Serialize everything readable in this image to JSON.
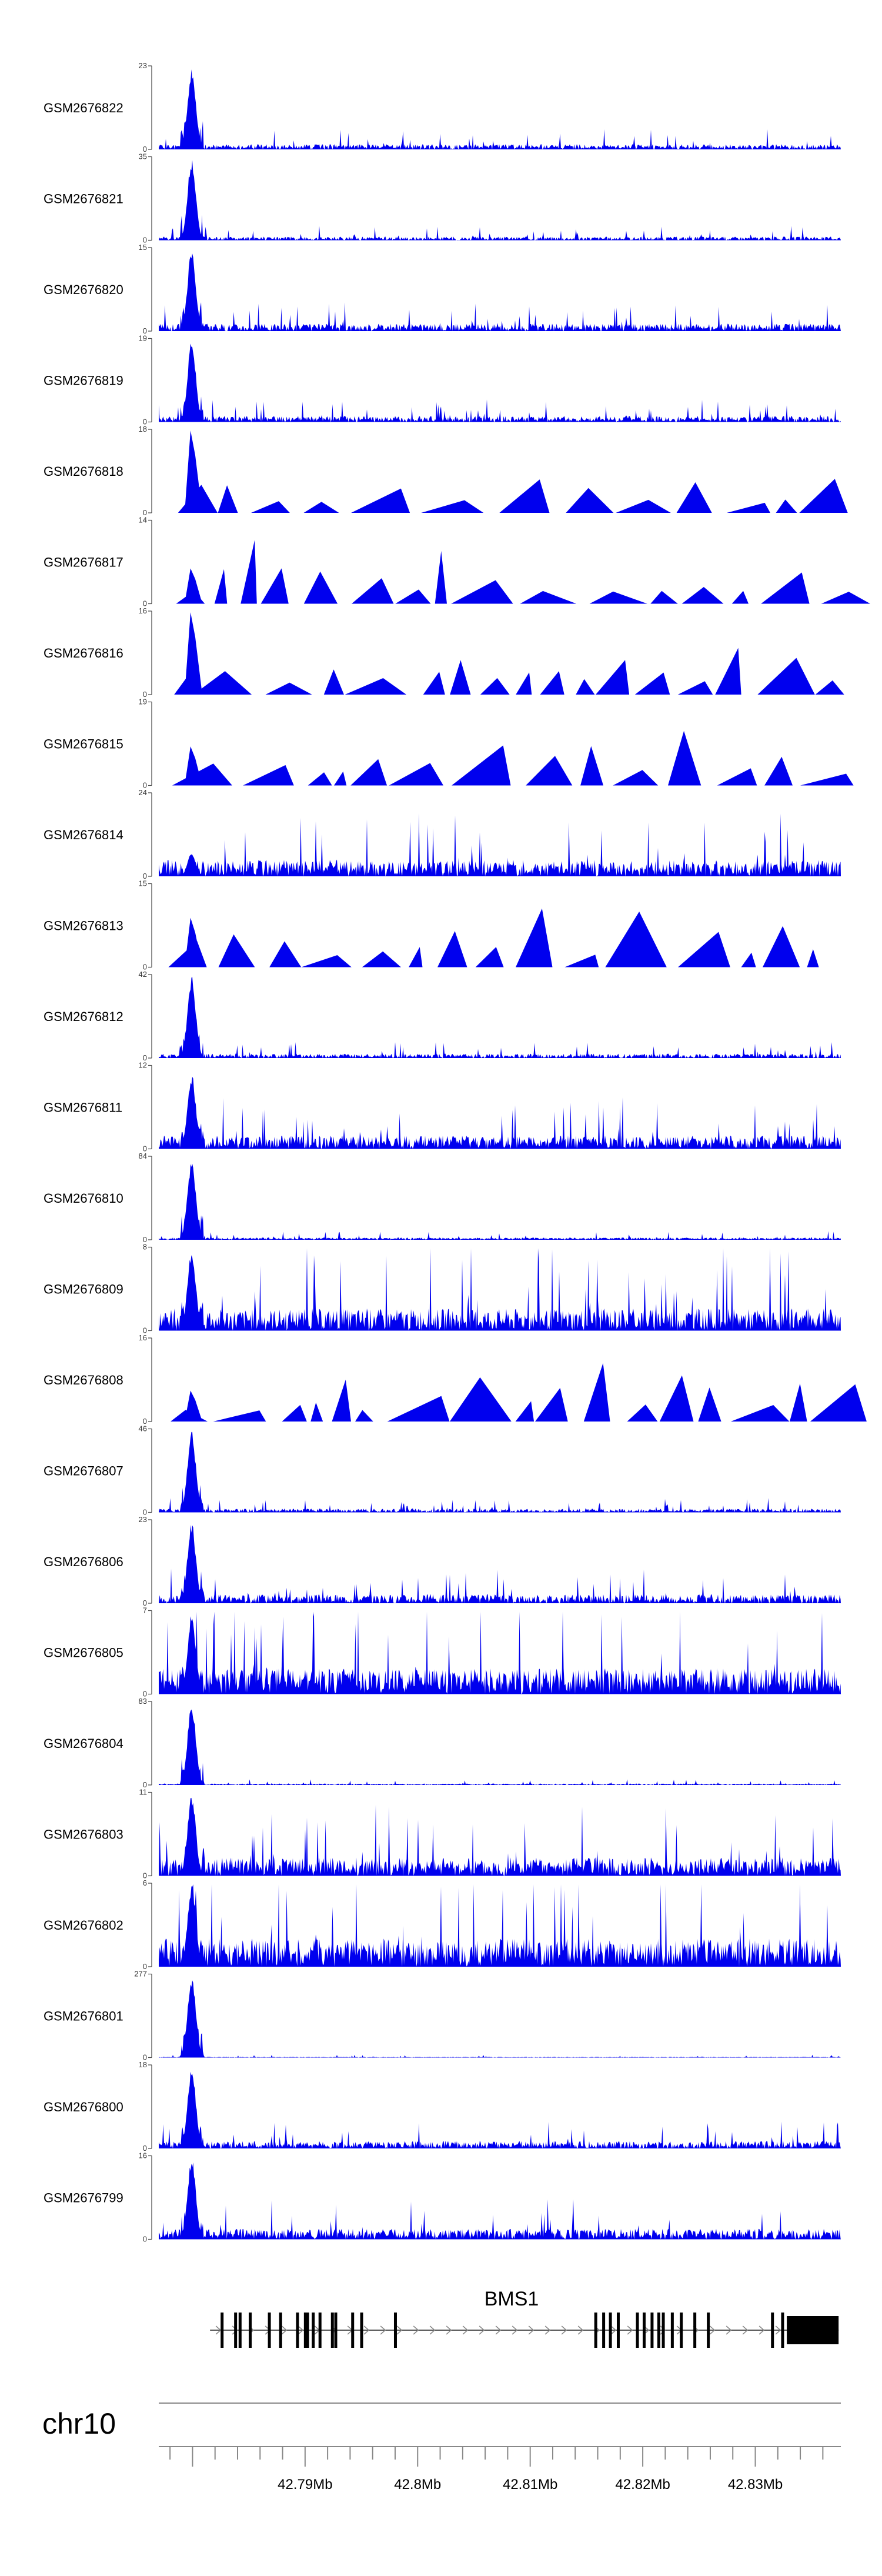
{
  "chart_data": {
    "type": "area",
    "title": "",
    "chromosome": "chr10",
    "gene": {
      "name": "BMS1",
      "strand": "+",
      "exons": [
        42.7826,
        42.7838,
        42.7842,
        42.7851,
        42.7868,
        42.7878,
        42.7893,
        42.79,
        42.7902,
        42.7907,
        42.7913,
        42.7924,
        42.7927,
        42.7942,
        42.795,
        42.798,
        42.8158,
        42.8165,
        42.8171,
        42.8178,
        42.8195,
        42.8201,
        42.8208,
        42.8214,
        42.8218,
        42.8226,
        42.8234,
        42.8246,
        42.8258,
        42.8315,
        42.8324
      ],
      "utr3": [
        42.8328,
        42.8374
      ]
    },
    "x_axis": {
      "ticks": [
        42.79,
        42.8,
        42.81,
        42.82,
        42.83
      ],
      "tick_labels": [
        "42.79Mb",
        "42.8Mb",
        "42.81Mb",
        "42.82Mb",
        "42.83Mb"
      ],
      "range": [
        42.777,
        42.8376
      ]
    },
    "series": [
      {
        "name": "GSM2676822",
        "ymax": 23,
        "peak": 23,
        "noise": 0.07,
        "mode": "dense",
        "seed": 1
      },
      {
        "name": "GSM2676821",
        "ymax": 35,
        "peak": 35,
        "noise": 0.05,
        "mode": "dense",
        "seed": 2
      },
      {
        "name": "GSM2676820",
        "ymax": 15,
        "peak": 15,
        "noise": 0.1,
        "mode": "dense",
        "seed": 3
      },
      {
        "name": "GSM2676819",
        "ymax": 19,
        "peak": 19,
        "noise": 0.08,
        "mode": "dense",
        "seed": 4
      },
      {
        "name": "GSM2676818",
        "ymax": 18,
        "peak": 18,
        "noise": 0.4,
        "mode": "sparse",
        "seed": 5
      },
      {
        "name": "GSM2676817",
        "ymax": 14,
        "peak": 6,
        "noise": 0.6,
        "mode": "sparse",
        "seed": 6
      },
      {
        "name": "GSM2676816",
        "ymax": 16,
        "peak": 16,
        "noise": 0.5,
        "mode": "sparse",
        "seed": 7
      },
      {
        "name": "GSM2676815",
        "ymax": 19,
        "peak": 9,
        "noise": 0.55,
        "mode": "sparse",
        "seed": 8
      },
      {
        "name": "GSM2676814",
        "ymax": 24,
        "peak": 7,
        "noise": 0.22,
        "mode": "mixed",
        "seed": 9
      },
      {
        "name": "GSM2676813",
        "ymax": 15,
        "peak": 9,
        "noise": 0.55,
        "mode": "sparse",
        "seed": 10
      },
      {
        "name": "GSM2676812",
        "ymax": 42,
        "peak": 42,
        "noise": 0.06,
        "mode": "dense",
        "seed": 11
      },
      {
        "name": "GSM2676811",
        "ymax": 12,
        "peak": 11,
        "noise": 0.18,
        "mode": "dense",
        "seed": 12
      },
      {
        "name": "GSM2676810",
        "ymax": 84,
        "peak": 84,
        "noise": 0.03,
        "mode": "dense",
        "seed": 13
      },
      {
        "name": "GSM2676809",
        "ymax": 8,
        "peak": 8,
        "noise": 0.3,
        "mode": "dense",
        "seed": 14
      },
      {
        "name": "GSM2676808",
        "ymax": 16,
        "peak": 6,
        "noise": 0.55,
        "mode": "sparse",
        "seed": 15
      },
      {
        "name": "GSM2676807",
        "ymax": 46,
        "peak": 46,
        "noise": 0.05,
        "mode": "dense",
        "seed": 16
      },
      {
        "name": "GSM2676806",
        "ymax": 23,
        "peak": 23,
        "noise": 0.12,
        "mode": "dense",
        "seed": 17
      },
      {
        "name": "GSM2676805",
        "ymax": 7,
        "peak": 7,
        "noise": 0.35,
        "mode": "dense",
        "seed": 18
      },
      {
        "name": "GSM2676804",
        "ymax": 83,
        "peak": 83,
        "noise": 0.02,
        "mode": "dense",
        "seed": 19
      },
      {
        "name": "GSM2676803",
        "ymax": 11,
        "peak": 11,
        "noise": 0.25,
        "mode": "dense",
        "seed": 20
      },
      {
        "name": "GSM2676802",
        "ymax": 6,
        "peak": 6,
        "noise": 0.38,
        "mode": "dense",
        "seed": 21
      },
      {
        "name": "GSM2676801",
        "ymax": 277,
        "peak": 277,
        "noise": 0.01,
        "mode": "dense",
        "seed": 22
      },
      {
        "name": "GSM2676800",
        "ymax": 18,
        "peak": 18,
        "noise": 0.1,
        "mode": "dense",
        "seed": 23
      },
      {
        "name": "GSM2676799",
        "ymax": 16,
        "peak": 16,
        "noise": 0.14,
        "mode": "dense",
        "seed": 24
      }
    ],
    "track_ymin": 0,
    "color": "#0000ee"
  }
}
